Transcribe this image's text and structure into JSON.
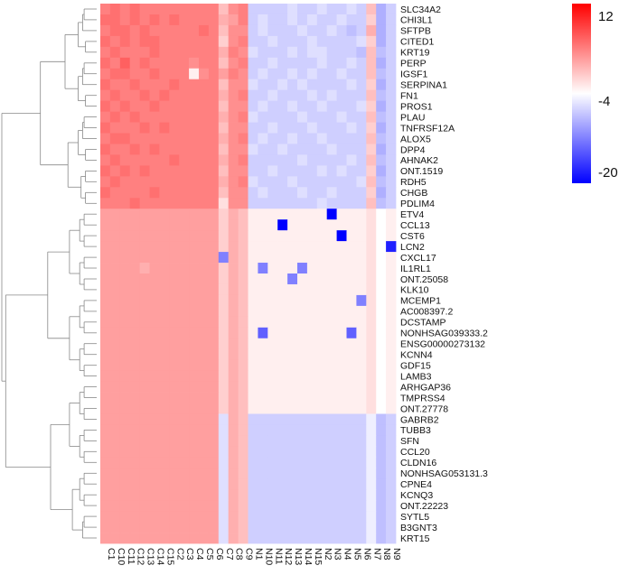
{
  "chart_data": {
    "type": "heatmap",
    "title": "",
    "xlabel": "",
    "ylabel": "",
    "colorbar": {
      "min": -20,
      "max": 12,
      "mid": -4,
      "ticks": [
        "12",
        "-4",
        "-20"
      ],
      "colors": {
        "low": "#0000ff",
        "mid": "#ffffff",
        "high": "#ff0000"
      }
    },
    "columns": [
      "C1",
      "C10",
      "C11",
      "C12",
      "C13",
      "C14",
      "C15",
      "C2",
      "C3",
      "C4",
      "C5",
      "C6",
      "C7",
      "C8",
      "C9",
      "N1",
      "N10",
      "N11",
      "N12",
      "N13",
      "N14",
      "N15",
      "N2",
      "N3",
      "N4",
      "N5",
      "N6",
      "N7",
      "N8",
      "N9"
    ],
    "rows": [
      "SLC34A2",
      "CHI3L1",
      "SFTPB",
      "CITED1",
      "KRT19",
      "PERP",
      "IGSF1",
      "SERPINA1",
      "FN1",
      "PROS1",
      "PLAU",
      "TNFRSF12A",
      "ALOX5",
      "DPP4",
      "AHNAK2",
      "ONT.1519",
      "RDH5",
      "CHGB",
      "PDLIM4",
      "ETV4",
      "CCL13",
      "CST6",
      "LCN2",
      "CXCL17",
      "IL1RL1",
      "ONT.25058",
      "KLK10",
      "MCEMP1",
      "AC008397.2",
      "DCSTAMP",
      "NONHSAG039333.2",
      "ENSG00000273132",
      "KCNN4",
      "GDF15",
      "LAMB3",
      "ARHGAP36",
      "TMPRSS4",
      "ONT.27778",
      "GABRB2",
      "TUBB3",
      "SFN",
      "CCL20",
      "CLDN16",
      "NONHSAG053131.3",
      "CPNE4",
      "KCNQ3",
      "ONT.22223",
      "SYTL5",
      "B3GNT3",
      "KRT15"
    ],
    "values": [
      [
        4,
        5,
        4,
        5,
        4,
        4,
        4,
        4,
        4,
        4,
        4,
        4,
        0,
        3,
        4,
        -7,
        -7,
        -7,
        -7,
        -6,
        -7,
        -7,
        -6,
        -7,
        -7,
        -6,
        -7,
        0,
        -9,
        -7
      ],
      [
        5,
        5,
        4,
        5,
        4,
        5,
        4,
        5,
        4,
        4,
        4,
        4,
        1,
        2,
        4,
        -7,
        -6,
        -7,
        -7,
        -6,
        -7,
        -6,
        -7,
        -7,
        -6,
        -7,
        -7,
        -1,
        -9,
        -7
      ],
      [
        4,
        5,
        5,
        4,
        5,
        4,
        4,
        4,
        4,
        4,
        5,
        4,
        0,
        3,
        3,
        -7,
        -6,
        -7,
        -7,
        -7,
        -6,
        -7,
        -7,
        -6,
        -7,
        -8,
        -7,
        1,
        -9,
        -7
      ],
      [
        5,
        4,
        5,
        4,
        5,
        5,
        4,
        4,
        4,
        4,
        4,
        4,
        -1,
        3,
        4,
        -7,
        -7,
        -6,
        -7,
        -7,
        -7,
        -6,
        -7,
        -7,
        -7,
        -7,
        -6,
        -1,
        -9,
        -7
      ],
      [
        4,
        5,
        4,
        4,
        4,
        5,
        4,
        4,
        4,
        4,
        4,
        4,
        1,
        4,
        3,
        -6,
        -7,
        -7,
        -7,
        -6,
        -7,
        -6,
        -6,
        -7,
        -7,
        -7,
        -8,
        0,
        -8,
        -7
      ],
      [
        5,
        4,
        6,
        4,
        5,
        4,
        4,
        4,
        4,
        3,
        4,
        4,
        0,
        3,
        4,
        -7,
        -7,
        -6,
        -7,
        -7,
        -7,
        -7,
        -6,
        -7,
        -7,
        -6,
        -7,
        0,
        -9,
        -7
      ],
      [
        4,
        5,
        5,
        4,
        4,
        5,
        4,
        4,
        4,
        -3,
        3,
        4,
        2,
        4,
        3,
        -7,
        -6,
        -7,
        -7,
        -6,
        -7,
        -6,
        -7,
        -7,
        -6,
        -7,
        -7,
        0,
        -8,
        -7
      ],
      [
        5,
        4,
        4,
        5,
        4,
        4,
        4,
        5,
        4,
        4,
        4,
        4,
        0,
        3,
        3,
        -6,
        -7,
        -7,
        -6,
        -7,
        -6,
        -7,
        -7,
        -7,
        -7,
        -6,
        -7,
        -1,
        -9,
        -7
      ],
      [
        4,
        5,
        4,
        4,
        5,
        4,
        5,
        4,
        4,
        4,
        4,
        4,
        1,
        3,
        4,
        -7,
        -7,
        -6,
        -7,
        -7,
        -7,
        -6,
        -7,
        -6,
        -7,
        -7,
        -7,
        0,
        -8,
        -7
      ],
      [
        5,
        4,
        5,
        4,
        4,
        5,
        4,
        4,
        4,
        4,
        4,
        4,
        0,
        3,
        3,
        -7,
        -6,
        -7,
        -7,
        -6,
        -7,
        -7,
        -6,
        -7,
        -7,
        -7,
        -6,
        -1,
        -9,
        -7
      ],
      [
        4,
        5,
        4,
        5,
        4,
        4,
        4,
        4,
        4,
        4,
        4,
        4,
        1,
        3,
        4,
        -6,
        -7,
        -7,
        -7,
        -7,
        -6,
        -7,
        -7,
        -7,
        -6,
        -7,
        -7,
        0,
        -8,
        -7
      ],
      [
        5,
        4,
        4,
        4,
        5,
        4,
        5,
        4,
        4,
        4,
        4,
        4,
        0,
        3,
        3,
        -7,
        -7,
        -6,
        -7,
        -7,
        -7,
        -6,
        -7,
        -7,
        -7,
        -6,
        -7,
        -1,
        -9,
        -7
      ],
      [
        4,
        5,
        5,
        4,
        4,
        4,
        4,
        4,
        4,
        4,
        4,
        4,
        1,
        3,
        4,
        -7,
        -6,
        -7,
        -7,
        -6,
        -7,
        -7,
        -6,
        -7,
        -7,
        -7,
        -7,
        0,
        -8,
        -7
      ],
      [
        5,
        4,
        4,
        5,
        4,
        5,
        4,
        4,
        4,
        4,
        4,
        4,
        0,
        3,
        3,
        -6,
        -7,
        -7,
        -6,
        -7,
        -7,
        -7,
        -7,
        -6,
        -7,
        -7,
        -7,
        -1,
        -9,
        -7
      ],
      [
        4,
        5,
        4,
        4,
        4,
        4,
        4,
        5,
        4,
        4,
        4,
        4,
        1,
        3,
        4,
        -7,
        -7,
        -7,
        -7,
        -7,
        -6,
        -7,
        -7,
        -7,
        -7,
        -6,
        -7,
        0,
        -8,
        -7
      ],
      [
        5,
        4,
        5,
        4,
        5,
        4,
        4,
        4,
        4,
        4,
        4,
        4,
        0,
        3,
        3,
        -7,
        -7,
        -6,
        -7,
        -7,
        -7,
        -7,
        -6,
        -7,
        -6,
        -7,
        -7,
        -1,
        -9,
        -7
      ],
      [
        4,
        5,
        4,
        4,
        4,
        4,
        4,
        4,
        4,
        4,
        4,
        4,
        1,
        3,
        4,
        -6,
        -7,
        -7,
        -7,
        -6,
        -7,
        -7,
        -7,
        -7,
        -7,
        -7,
        -6,
        0,
        -8,
        -7
      ],
      [
        5,
        4,
        4,
        4,
        4,
        5,
        4,
        4,
        4,
        4,
        4,
        4,
        0,
        3,
        3,
        -7,
        -6,
        -7,
        -7,
        -7,
        -6,
        -7,
        -7,
        -6,
        -7,
        -7,
        -7,
        -1,
        -9,
        -7
      ],
      [
        4,
        4,
        4,
        5,
        4,
        4,
        4,
        4,
        4,
        4,
        4,
        4,
        -2,
        3,
        3,
        -7,
        -7,
        -7,
        -7,
        -7,
        -7,
        -7,
        -6,
        -7,
        -7,
        -7,
        -7,
        0,
        -8,
        -7
      ],
      [
        2,
        2,
        2,
        2,
        2,
        2,
        2,
        2,
        2,
        2,
        2,
        2,
        -1,
        1,
        0,
        -3,
        -3,
        -3,
        -3,
        -3,
        -3,
        -3,
        -3,
        -20,
        -3,
        -3,
        -3,
        -2,
        -4,
        -3
      ],
      [
        2,
        2,
        2,
        2,
        2,
        2,
        2,
        2,
        2,
        2,
        2,
        2,
        -1,
        1,
        0,
        -3,
        -3,
        -3,
        -20,
        -3,
        -3,
        -3,
        -3,
        -3,
        -3,
        -3,
        -3,
        -2,
        -4,
        -3
      ],
      [
        2,
        2,
        2,
        2,
        2,
        2,
        2,
        2,
        2,
        2,
        2,
        2,
        -1,
        1,
        0,
        -3,
        -3,
        -3,
        -3,
        -3,
        -3,
        -3,
        -3,
        -3,
        -20,
        -3,
        -3,
        -2,
        -4,
        -3
      ],
      [
        2,
        2,
        2,
        2,
        2,
        2,
        2,
        2,
        2,
        2,
        2,
        2,
        -1,
        1,
        0,
        -3,
        -3,
        -3,
        -3,
        -3,
        -3,
        -3,
        -3,
        -3,
        -3,
        -3,
        -3,
        -2,
        -4,
        -18
      ],
      [
        2,
        2,
        2,
        2,
        2,
        2,
        2,
        2,
        2,
        2,
        2,
        2,
        -12,
        1,
        0,
        -3,
        -3,
        -3,
        -3,
        -3,
        -3,
        -3,
        -3,
        -3,
        -3,
        -3,
        -3,
        -2,
        -4,
        -3
      ],
      [
        2,
        2,
        2,
        2,
        1,
        2,
        2,
        2,
        2,
        2,
        2,
        2,
        -1,
        1,
        0,
        -3,
        -12,
        -3,
        -3,
        -3,
        -12,
        -3,
        -3,
        -3,
        -3,
        -3,
        -3,
        -2,
        -4,
        -3
      ],
      [
        2,
        2,
        2,
        2,
        2,
        2,
        2,
        2,
        2,
        2,
        2,
        2,
        -1,
        1,
        0,
        -3,
        -3,
        -3,
        -3,
        -12,
        -3,
        -3,
        -3,
        -3,
        -3,
        -3,
        -3,
        -2,
        -4,
        -3
      ],
      [
        2,
        2,
        2,
        2,
        2,
        2,
        2,
        2,
        2,
        2,
        2,
        2,
        -1,
        1,
        0,
        -3,
        -3,
        -3,
        -3,
        -3,
        -3,
        -3,
        -3,
        -3,
        -3,
        -3,
        -3,
        -2,
        -4,
        -3
      ],
      [
        2,
        2,
        2,
        2,
        2,
        2,
        2,
        2,
        2,
        2,
        2,
        2,
        -1,
        1,
        0,
        -3,
        -3,
        -3,
        -3,
        -3,
        -3,
        -3,
        -3,
        -3,
        -3,
        -3,
        -12,
        -2,
        -4,
        -3
      ],
      [
        2,
        2,
        2,
        2,
        2,
        2,
        2,
        2,
        2,
        2,
        2,
        2,
        -1,
        1,
        0,
        -3,
        -3,
        -3,
        -3,
        -3,
        -3,
        -3,
        -3,
        -3,
        -3,
        -3,
        -3,
        -2,
        -4,
        -3
      ],
      [
        2,
        2,
        2,
        2,
        2,
        2,
        2,
        2,
        2,
        2,
        2,
        2,
        -1,
        1,
        0,
        -3,
        -3,
        -3,
        -3,
        -3,
        -3,
        -3,
        -3,
        -3,
        -3,
        -3,
        -3,
        -2,
        -4,
        -3
      ],
      [
        2,
        2,
        2,
        2,
        2,
        2,
        2,
        2,
        2,
        2,
        2,
        2,
        -1,
        1,
        0,
        -3,
        -14,
        -3,
        -3,
        -3,
        -3,
        -3,
        -3,
        -3,
        -3,
        -14,
        -3,
        -2,
        -4,
        -3
      ],
      [
        2,
        2,
        2,
        2,
        2,
        2,
        2,
        2,
        2,
        2,
        2,
        2,
        -1,
        1,
        0,
        -3,
        -3,
        -3,
        -3,
        -3,
        -3,
        -3,
        -3,
        -3,
        -3,
        -3,
        -3,
        -2,
        -4,
        -3
      ],
      [
        2,
        2,
        2,
        2,
        2,
        2,
        2,
        2,
        2,
        2,
        2,
        2,
        -1,
        1,
        0,
        -3,
        -3,
        -3,
        -3,
        -3,
        -3,
        -3,
        -3,
        -3,
        -3,
        -3,
        -3,
        -2,
        -4,
        -3
      ],
      [
        2,
        2,
        2,
        2,
        2,
        2,
        2,
        2,
        2,
        2,
        2,
        2,
        -1,
        1,
        0,
        -3,
        -3,
        -3,
        -3,
        -3,
        -3,
        -3,
        -3,
        -3,
        -3,
        -3,
        -3,
        -2,
        -4,
        -3
      ],
      [
        2,
        2,
        2,
        2,
        2,
        2,
        2,
        2,
        2,
        2,
        2,
        2,
        -1,
        1,
        0,
        -3,
        -3,
        -3,
        -3,
        -3,
        -3,
        -3,
        -3,
        -3,
        -3,
        -3,
        -3,
        -2,
        -4,
        -3
      ],
      [
        2,
        2,
        2,
        2,
        2,
        2,
        2,
        2,
        2,
        2,
        2,
        2,
        -1,
        1,
        0,
        -3,
        -3,
        -3,
        -3,
        -3,
        -3,
        -3,
        -3,
        -3,
        -3,
        -3,
        -3,
        -2,
        -4,
        -3
      ],
      [
        2,
        2,
        2,
        2,
        2,
        2,
        2,
        2,
        2,
        2,
        2,
        2,
        -1,
        1,
        0,
        -3,
        -3,
        -3,
        -3,
        -3,
        -3,
        -3,
        -3,
        -3,
        -3,
        -3,
        -3,
        -2,
        -4,
        -3
      ],
      [
        2,
        2,
        2,
        2,
        2,
        2,
        2,
        2,
        2,
        2,
        2,
        2,
        -1,
        1,
        0,
        -3,
        -3,
        -3,
        -3,
        -3,
        -3,
        -3,
        -3,
        -3,
        -3,
        -3,
        -3,
        -2,
        -4,
        -3
      ],
      [
        2,
        2,
        2,
        2,
        2,
        2,
        2,
        2,
        2,
        2,
        2,
        2,
        -6,
        1,
        0,
        -7,
        -7,
        -7,
        -7,
        -7,
        -7,
        -7,
        -7,
        -7,
        -7,
        -7,
        -7,
        -5,
        -8,
        -7
      ],
      [
        2,
        2,
        2,
        2,
        2,
        2,
        2,
        2,
        2,
        2,
        2,
        2,
        -6,
        1,
        0,
        -7,
        -7,
        -7,
        -7,
        -7,
        -7,
        -7,
        -7,
        -7,
        -7,
        -7,
        -7,
        -5,
        -8,
        -7
      ],
      [
        2,
        2,
        2,
        2,
        2,
        2,
        2,
        2,
        2,
        2,
        2,
        2,
        -6,
        1,
        0,
        -7,
        -7,
        -7,
        -7,
        -7,
        -7,
        -7,
        -7,
        -7,
        -7,
        -7,
        -7,
        -5,
        -8,
        -7
      ],
      [
        2,
        2,
        2,
        2,
        2,
        2,
        2,
        2,
        2,
        2,
        2,
        2,
        -6,
        1,
        0,
        -7,
        -7,
        -7,
        -7,
        -7,
        -7,
        -7,
        -7,
        -7,
        -7,
        -7,
        -7,
        -5,
        -8,
        -7
      ],
      [
        2,
        2,
        2,
        2,
        2,
        2,
        2,
        2,
        2,
        2,
        2,
        2,
        -6,
        1,
        0,
        -7,
        -7,
        -7,
        -7,
        -7,
        -7,
        -7,
        -7,
        -7,
        -7,
        -7,
        -7,
        -5,
        -8,
        -7
      ],
      [
        2,
        2,
        2,
        2,
        2,
        2,
        2,
        2,
        2,
        2,
        2,
        2,
        -6,
        1,
        0,
        -7,
        -7,
        -7,
        -7,
        -7,
        -7,
        -7,
        -7,
        -7,
        -7,
        -7,
        -7,
        -5,
        -8,
        -7
      ],
      [
        2,
        2,
        2,
        2,
        2,
        2,
        2,
        2,
        2,
        2,
        2,
        2,
        -6,
        1,
        0,
        -7,
        -7,
        -7,
        -7,
        -7,
        -7,
        -7,
        -7,
        -7,
        -7,
        -7,
        -7,
        -5,
        -8,
        -7
      ],
      [
        2,
        2,
        2,
        2,
        2,
        2,
        2,
        2,
        2,
        2,
        2,
        2,
        -6,
        1,
        0,
        -7,
        -7,
        -7,
        -7,
        -7,
        -7,
        -7,
        -7,
        -7,
        -7,
        -7,
        -7,
        -5,
        -8,
        -7
      ],
      [
        2,
        2,
        2,
        2,
        2,
        2,
        2,
        2,
        2,
        2,
        2,
        2,
        -6,
        1,
        0,
        -7,
        -7,
        -7,
        -7,
        -7,
        -7,
        -7,
        -7,
        -7,
        -7,
        -7,
        -7,
        -5,
        -8,
        -7
      ],
      [
        2,
        2,
        2,
        2,
        2,
        2,
        2,
        2,
        2,
        2,
        2,
        2,
        -6,
        1,
        0,
        -7,
        -7,
        -7,
        -7,
        -7,
        -7,
        -7,
        -7,
        -7,
        -7,
        -7,
        -7,
        -5,
        -8,
        -7
      ],
      [
        2,
        2,
        2,
        2,
        2,
        2,
        2,
        2,
        2,
        2,
        2,
        2,
        -6,
        1,
        0,
        -7,
        -7,
        -7,
        -7,
        -7,
        -7,
        -7,
        -7,
        -7,
        -7,
        -7,
        -7,
        -5,
        -8,
        -7
      ],
      [
        2,
        2,
        2,
        2,
        2,
        2,
        2,
        2,
        2,
        2,
        2,
        2,
        -6,
        1,
        0,
        -7,
        -7,
        -7,
        -7,
        -7,
        -7,
        -7,
        -7,
        -7,
        -7,
        -7,
        -7,
        -5,
        -8,
        -7
      ]
    ],
    "legend_placement": "top-right",
    "row_dendrogram": true
  }
}
